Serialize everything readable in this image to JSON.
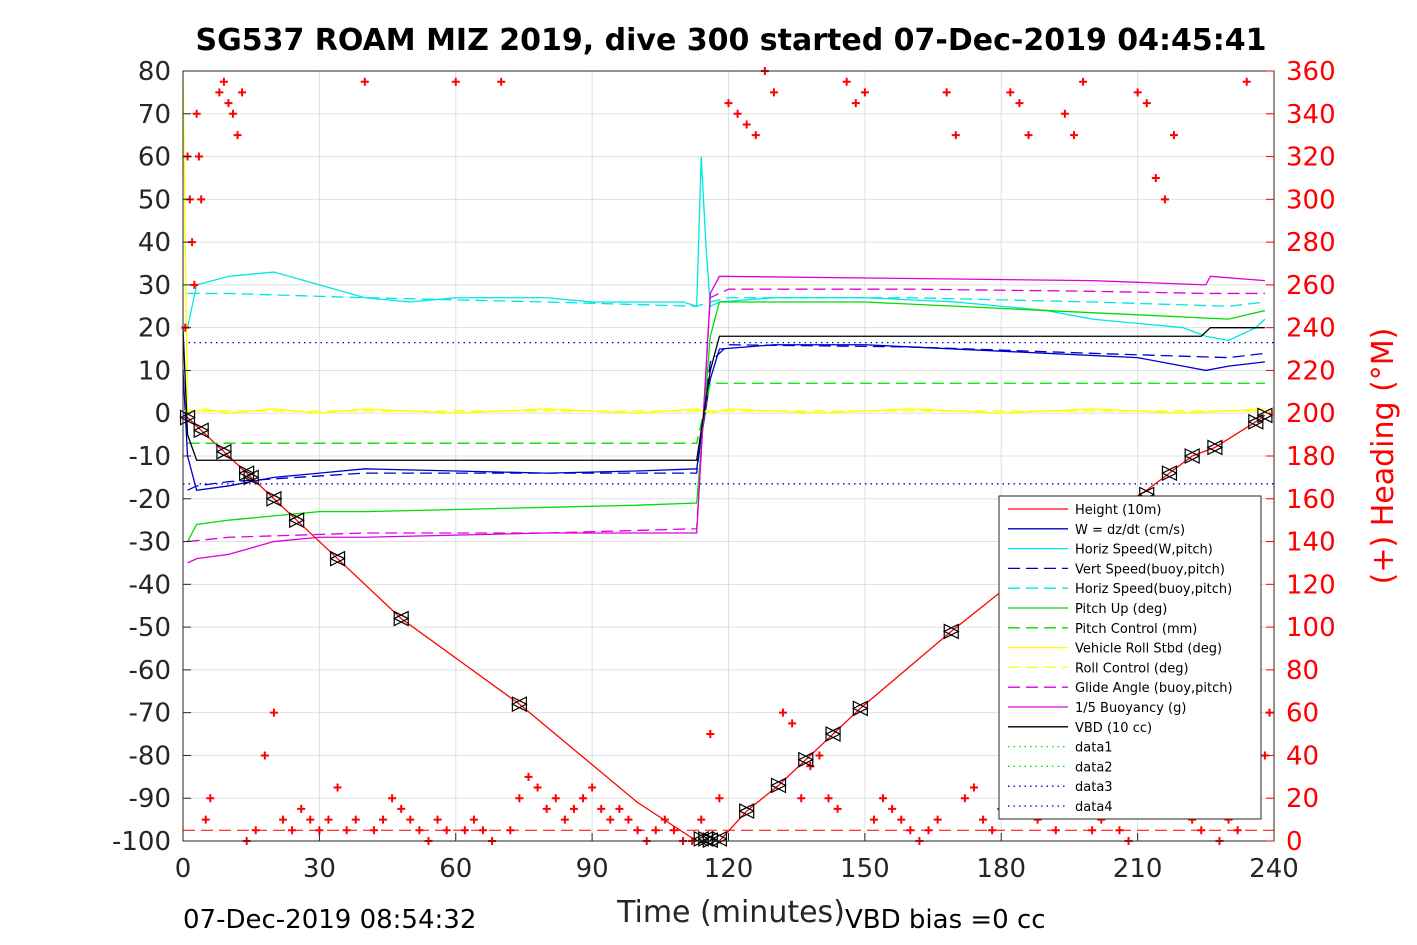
{
  "chart_data": {
    "type": "line",
    "title": "SG537 ROAM MIZ 2019, dive 300 started 07-Dec-2019 04:45:41",
    "xlabel": "Time (minutes)",
    "ylabel_right": "(+) Heading (°M)",
    "xlim": [
      0,
      240
    ],
    "ylim_left": [
      -100,
      80
    ],
    "ylim_right": [
      0,
      360
    ],
    "x_ticks": [
      "0",
      "30",
      "60",
      "90",
      "120",
      "150",
      "180",
      "210",
      "240"
    ],
    "y_left_ticks": [
      "-100",
      "-90",
      "-80",
      "-70",
      "-60",
      "-50",
      "-40",
      "-30",
      "-20",
      "-10",
      "0",
      "10",
      "20",
      "30",
      "40",
      "50",
      "60",
      "70",
      "80"
    ],
    "y_right_ticks": [
      "0",
      "20",
      "40",
      "60",
      "80",
      "100",
      "120",
      "140",
      "160",
      "180",
      "200",
      "220",
      "240",
      "260",
      "280",
      "300",
      "320",
      "340",
      "360"
    ],
    "grid": true,
    "legend_position": "lower-right",
    "footer_left": "07-Dec-2019 08:54:32",
    "footer_right": "VBD bias =0 cc",
    "series": [
      {
        "name": "Height (10m)",
        "color": "#ff0000",
        "dash": "solid",
        "x": [
          0,
          1,
          4,
          9,
          14,
          20,
          25,
          34,
          48,
          74,
          100,
          113,
          116,
          118,
          124,
          131,
          137,
          143,
          149,
          169,
          195,
          212,
          217,
          222,
          227,
          236,
          238
        ],
        "y": [
          -1,
          -1,
          -4,
          -9,
          -14,
          -20,
          -25,
          -34,
          -48,
          -68,
          -91,
          -100,
          -100,
          -100,
          -93,
          -87,
          -81,
          -75,
          -69,
          -51,
          -29,
          -18,
          -14,
          -10,
          -8,
          -2,
          -0.5
        ]
      },
      {
        "name": "W = dz/dt (cm/s)",
        "color": "#0000cc",
        "dash": "solid",
        "x": [
          0,
          1,
          3,
          10,
          20,
          30,
          40,
          60,
          80,
          100,
          113,
          116,
          118,
          130,
          150,
          170,
          190,
          210,
          220,
          225,
          230,
          238
        ],
        "y": [
          10,
          -10,
          -18,
          -17,
          -15,
          -14,
          -13,
          -13.5,
          -14,
          -13.5,
          -13,
          8,
          15,
          16,
          16,
          15,
          14,
          13,
          11,
          10,
          11,
          12
        ]
      },
      {
        "name": "Horiz Speed(W,pitch)",
        "color": "#00e5e5",
        "dash": "solid",
        "x": [
          1,
          3,
          10,
          20,
          30,
          40,
          50,
          60,
          70,
          80,
          90,
          100,
          110,
          113,
          114,
          115,
          116,
          118,
          130,
          150,
          170,
          190,
          200,
          210,
          220,
          225,
          230,
          236,
          238
        ],
        "y": [
          20,
          30,
          32,
          33,
          30,
          27,
          26,
          27,
          27,
          27,
          26,
          26,
          26,
          25,
          60,
          40,
          25,
          26,
          27,
          27,
          26,
          24,
          22,
          21,
          20,
          18,
          17,
          20,
          22
        ]
      },
      {
        "name": "Vert Speed(buoy,pitch)",
        "color": "#0000cc",
        "dash": "dash",
        "x": [
          1,
          3,
          10,
          40,
          80,
          113,
          116,
          120,
          160,
          200,
          230,
          238
        ],
        "y": [
          -18,
          -17,
          -16,
          -14,
          -14,
          -14,
          12,
          16,
          15.5,
          14,
          13,
          14
        ]
      },
      {
        "name": "Horiz Speed(buoy,pitch)",
        "color": "#00e5e5",
        "dash": "dash",
        "x": [
          1,
          3,
          10,
          40,
          80,
          113,
          116,
          120,
          160,
          200,
          230,
          238
        ],
        "y": [
          28,
          28,
          28,
          27,
          26,
          25,
          26,
          27,
          27,
          26,
          25,
          26
        ]
      },
      {
        "name": "Pitch Up (deg)",
        "color": "#00dd00",
        "dash": "solid",
        "x": [
          1,
          3,
          10,
          20,
          30,
          40,
          60,
          80,
          100,
          113,
          116,
          118,
          130,
          150,
          170,
          190,
          210,
          230,
          238
        ],
        "y": [
          -30,
          -26,
          -25,
          -24,
          -23,
          -23,
          -22.5,
          -22,
          -21.5,
          -21,
          18,
          26,
          26,
          26,
          25,
          24,
          23,
          22,
          24
        ]
      },
      {
        "name": "Pitch Control (mm)",
        "color": "#00dd00",
        "dash": "dash",
        "x": [
          1,
          10,
          60,
          113,
          116,
          130,
          180,
          238
        ],
        "y": [
          -7,
          -7,
          -7,
          -7,
          7,
          7,
          7,
          7
        ]
      },
      {
        "name": "Vehicle Roll Stbd (deg)",
        "color": "#ffff00",
        "dash": "solid",
        "x": [
          0,
          1,
          5,
          10,
          20,
          30,
          40,
          60,
          80,
          100,
          113,
          116,
          120,
          140,
          160,
          180,
          200,
          220,
          238
        ],
        "y": [
          80,
          0,
          1,
          0,
          1,
          0,
          1,
          0,
          1,
          0,
          1,
          0,
          1,
          0,
          1,
          0,
          1,
          0,
          1
        ]
      },
      {
        "name": "Roll Control (deg)",
        "color": "#ffff00",
        "dash": "dash",
        "x": [
          0,
          240
        ],
        "y": [
          0.5,
          0.5
        ]
      },
      {
        "name": "Glide Angle (buoy,pitch)",
        "color": "#dd00dd",
        "dash": "dash",
        "x": [
          1,
          10,
          40,
          80,
          113,
          116,
          120,
          160,
          200,
          225,
          226,
          238
        ],
        "y": [
          -30,
          -29,
          -28,
          -28,
          -27,
          27,
          29,
          29,
          28.5,
          28,
          28,
          28
        ]
      },
      {
        "name": "1/5 Buoyancy (g)",
        "color": "#dd00dd",
        "dash": "solid",
        "x": [
          1,
          3,
          10,
          20,
          30,
          40,
          80,
          113,
          116,
          118,
          160,
          200,
          225,
          226,
          238
        ],
        "y": [
          -35,
          -34,
          -33,
          -30,
          -29,
          -29,
          -28,
          -28,
          28,
          32,
          31.5,
          31,
          30,
          32,
          31
        ]
      },
      {
        "name": "VBD (10 cc)",
        "color": "#000000",
        "dash": "solid",
        "x": [
          0,
          1,
          3,
          113,
          116,
          118,
          224,
          226,
          238
        ],
        "y": [
          20,
          -5,
          -11,
          -11,
          10,
          18,
          18,
          20,
          20
        ]
      },
      {
        "name": "data1",
        "color": "#00dd00",
        "dash": "dot",
        "x": [],
        "y": []
      },
      {
        "name": "data2",
        "color": "#00dd00",
        "dash": "dot",
        "x": [],
        "y": []
      },
      {
        "name": "data3",
        "color": "#0000cc",
        "dash": "dot",
        "x": [
          0,
          240
        ],
        "y": [
          16.5,
          16.5
        ]
      },
      {
        "name": "data4",
        "color": "#0000cc",
        "dash": "dot",
        "x": [
          0,
          240
        ],
        "y": [
          -16.5,
          -16.5
        ]
      }
    ],
    "extra_lines": [
      {
        "color": "#ff0000",
        "dash": "dash",
        "x": [
          0,
          240
        ],
        "y_right": [
          5,
          5
        ]
      }
    ],
    "heading_points": {
      "color": "#ff0000",
      "axis": "right",
      "x": [
        0.5,
        1,
        1.5,
        2,
        2.5,
        3,
        3.5,
        4,
        5,
        6,
        8,
        9,
        10,
        11,
        12,
        13,
        14,
        16,
        18,
        20,
        22,
        24,
        26,
        28,
        30,
        32,
        34,
        36,
        38,
        40,
        42,
        44,
        46,
        48,
        50,
        52,
        54,
        56,
        58,
        60,
        62,
        64,
        66,
        68,
        70,
        72,
        74,
        76,
        78,
        80,
        82,
        84,
        86,
        88,
        90,
        92,
        94,
        96,
        98,
        100,
        102,
        104,
        106,
        108,
        110,
        112,
        114,
        116,
        118,
        120,
        122,
        124,
        126,
        128,
        130,
        132,
        134,
        136,
        138,
        140,
        142,
        144,
        146,
        148,
        150,
        152,
        154,
        156,
        158,
        160,
        162,
        164,
        166,
        168,
        170,
        172,
        174,
        176,
        178,
        180,
        182,
        184,
        186,
        188,
        190,
        192,
        194,
        196,
        198,
        200,
        202,
        204,
        206,
        208,
        210,
        212,
        214,
        216,
        218,
        220,
        222,
        224,
        226,
        228,
        230,
        232,
        234,
        236,
        238,
        239
      ],
      "y": [
        240,
        320,
        300,
        280,
        260,
        340,
        320,
        300,
        10,
        20,
        350,
        355,
        345,
        340,
        330,
        350,
        0,
        5,
        40,
        60,
        10,
        5,
        15,
        10,
        5,
        10,
        25,
        5,
        10,
        355,
        5,
        10,
        20,
        15,
        10,
        5,
        0,
        10,
        5,
        355,
        5,
        10,
        5,
        0,
        355,
        5,
        20,
        30,
        25,
        15,
        20,
        10,
        15,
        20,
        25,
        15,
        10,
        15,
        10,
        5,
        0,
        5,
        10,
        5,
        0,
        0,
        10,
        50,
        20,
        345,
        340,
        335,
        330,
        360,
        350,
        60,
        55,
        20,
        35,
        40,
        20,
        15,
        355,
        345,
        350,
        10,
        20,
        15,
        10,
        5,
        0,
        5,
        10,
        350,
        330,
        20,
        25,
        10,
        5,
        15,
        350,
        345,
        330,
        10,
        15,
        5,
        340,
        330,
        355,
        5,
        10,
        15,
        5,
        0,
        350,
        345,
        310,
        300,
        330,
        20,
        10,
        5,
        15,
        0,
        10,
        5,
        355,
        20,
        40,
        60
      ]
    },
    "markers": {
      "x": [
        1,
        4,
        9,
        14,
        15,
        20,
        25,
        34,
        48,
        74,
        114,
        115,
        116,
        118,
        124,
        131,
        137,
        143,
        149,
        169,
        212,
        217,
        222,
        227,
        236,
        238
      ],
      "y": [
        -1,
        -4,
        -9,
        -14,
        -15,
        -20,
        -25,
        -34,
        -48,
        -68,
        -99.5,
        -99.5,
        -99.8,
        -99.5,
        -93,
        -87,
        -81,
        -75,
        -69,
        -51,
        -19,
        -14,
        -10,
        -8,
        -2,
        -0.5
      ]
    }
  }
}
